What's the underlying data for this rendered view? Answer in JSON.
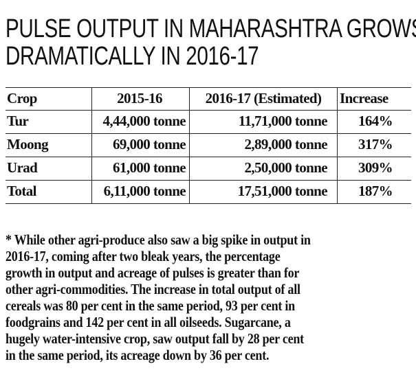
{
  "header": {
    "title": [
      "PULSE OUTPUT IN MAHARASHTRA GROWS",
      "DRAMATICALLY IN 2016-17"
    ]
  },
  "table": {
    "columns": [
      "Crop",
      "2015-16",
      "2016-17 (Estimated)",
      "Increase"
    ],
    "rows": [
      [
        "Tur",
        "4,44,000 tonne",
        "11,71,000 tonne",
        "164%"
      ],
      [
        "Moong",
        "69,000 tonne",
        "2,89,000 tonne",
        "317%"
      ],
      [
        "Urad",
        "61,000 tonne",
        "2,50,000 tonne",
        "309%"
      ],
      [
        "Total",
        "6,11,000 tonne",
        "17,51,000 tonne",
        "187%"
      ]
    ]
  },
  "footnote": [
    "* While other agri-produce also saw a big spike in output in",
    "2016-17, coming after two bleak years, the percentage",
    "growth in output and acreage of pulses is greater than for",
    "other agri-commodities. The increase in total output of all",
    "cereals was 80 per cent in the same period, 93 per cent in",
    "foodgrains and 142 per cent in all oilseeds. Sugarcane, a",
    "hugely water-intensive crop, saw output fall by 28 per cent",
    "in the same period, its acreage down by 36 per cent."
  ]
}
